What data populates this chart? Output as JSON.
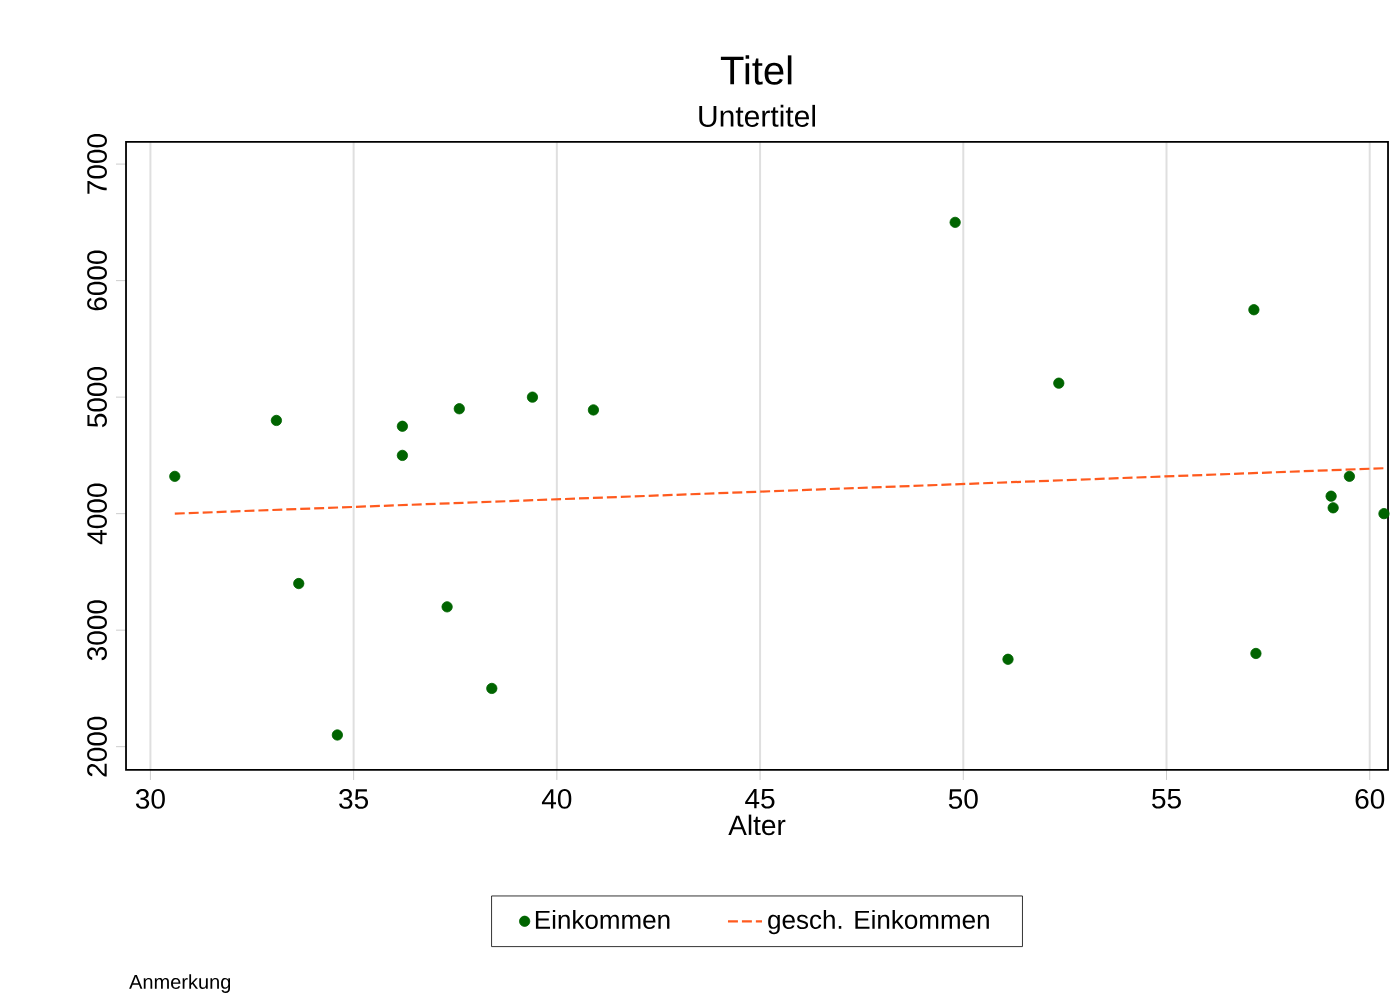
{
  "chart_data": {
    "type": "scatter",
    "title": "Titel",
    "subtitle": "Untertitel",
    "xlabel": "Alter",
    "annotations": [
      "Anmerkung"
    ],
    "xlim": [
      29.4,
      60.45
    ],
    "xticks": [
      30,
      35,
      40,
      45,
      50,
      55,
      60
    ],
    "ylim": [
      1800,
      7190
    ],
    "yticks": [
      2000,
      3000,
      4000,
      5000,
      6000,
      7000
    ],
    "grid": "x",
    "legend": "bottom",
    "series": [
      {
        "name": "Einkommen",
        "marker": "circle",
        "color": "#006400",
        "x": [
          30.6,
          33.1,
          33.65,
          34.6,
          36.2,
          36.2,
          37.6,
          37.3,
          38.4,
          39.4,
          40.9,
          49.8,
          57.15,
          52.35,
          59.5,
          59.05,
          59.1,
          60.35,
          51.1,
          57.2
        ],
        "values": [
          4320,
          4800,
          3400,
          2100,
          4750,
          4500,
          4900,
          3200,
          2500,
          5000,
          4890,
          6500,
          5750,
          5120,
          4320,
          4150,
          4050,
          4000,
          2750,
          2800
        ]
      },
      {
        "name": "gesch. Einkommen",
        "type": "line",
        "marker": "none",
        "line_style": "dashed",
        "color": "#ff5a1e",
        "x": [
          30.6,
          60.35
        ],
        "values": [
          4000,
          4390
        ]
      }
    ]
  }
}
